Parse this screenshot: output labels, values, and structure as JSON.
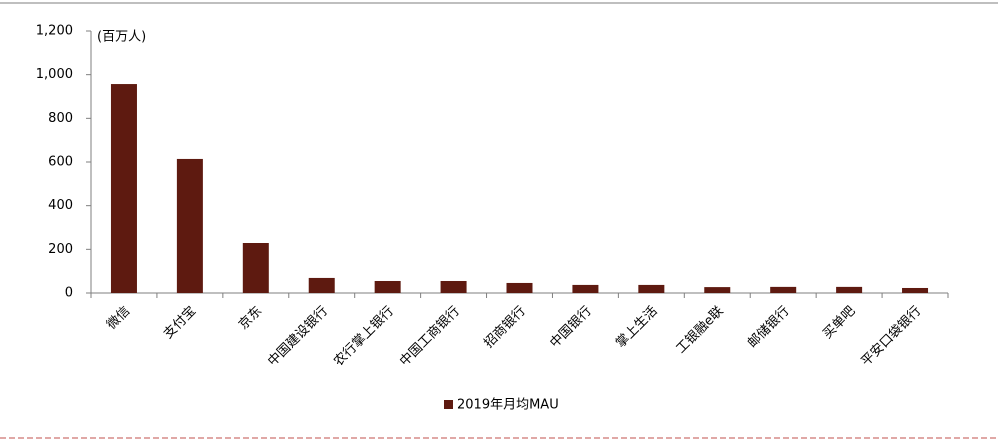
{
  "chart_data": {
    "type": "bar",
    "unit_label": "(百万人)",
    "categories": [
      "微信",
      "支付宝",
      "京东",
      "中国建设银行",
      "农行掌上银行",
      "中国工商银行",
      "招商银行",
      "中国银行",
      "掌上生活",
      "工银融e联",
      "邮储银行",
      "买单吧",
      "平安口袋银行"
    ],
    "series": [
      {
        "name": "2019年月均MAU",
        "color": "#5e1a10",
        "values": [
          957,
          614,
          229,
          69,
          55,
          55,
          46,
          37,
          37,
          27,
          28,
          28,
          23
        ]
      }
    ],
    "ylim": [
      0,
      1200
    ],
    "yticks": [
      0,
      200,
      400,
      600,
      800,
      {
        "value": 1000,
        "label": "1,000"
      },
      {
        "value": 1200,
        "label": "1,200"
      }
    ],
    "legend": "bottom"
  }
}
